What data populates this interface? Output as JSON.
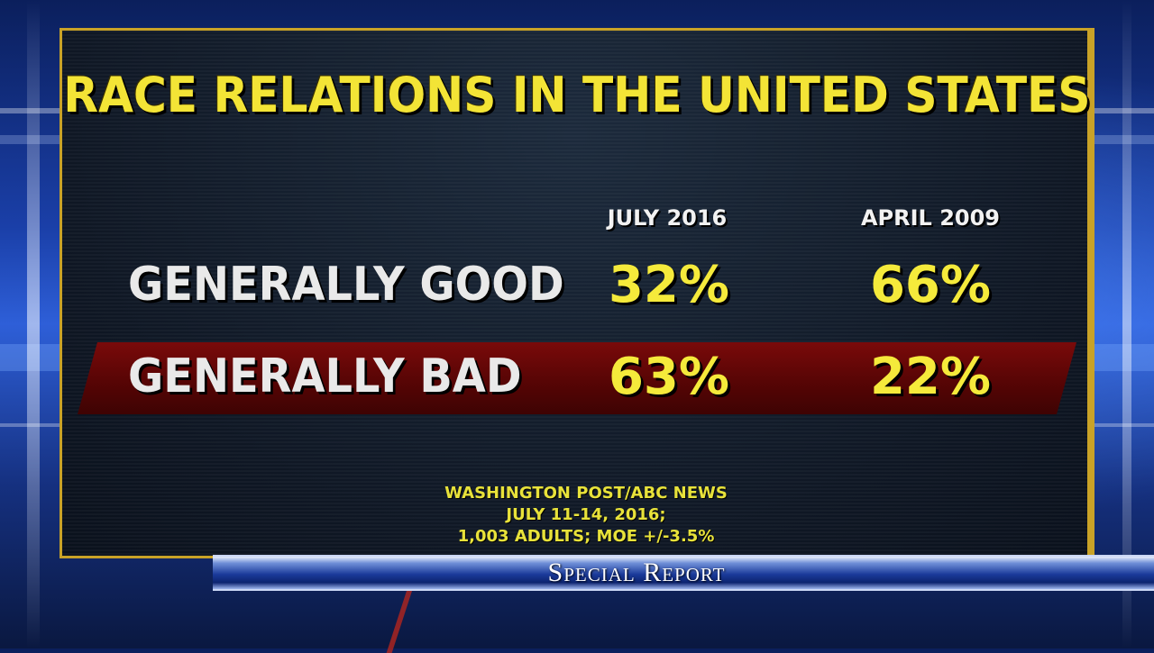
{
  "chart_data": {
    "type": "table",
    "title": "RACE RELATIONS IN THE UNITED STATES",
    "columns": [
      "JULY 2016",
      "APRIL 2009"
    ],
    "rows": [
      {
        "label": "GENERALLY GOOD",
        "values": [
          "32%",
          "66%"
        ]
      },
      {
        "label": "GENERALLY BAD",
        "values": [
          "63%",
          "22%"
        ]
      }
    ],
    "source_lines": [
      "WASHINGTON POST/ABC NEWS",
      "JULY 11-14, 2016;",
      "1,003 ADULTS; MOE +/-3.5%"
    ]
  },
  "show": {
    "name": "Special Report"
  },
  "colors": {
    "title": "#f3e436",
    "values": "#f5ea3b",
    "frame": "#c9a227",
    "bad_band": "#7a0a0a"
  }
}
